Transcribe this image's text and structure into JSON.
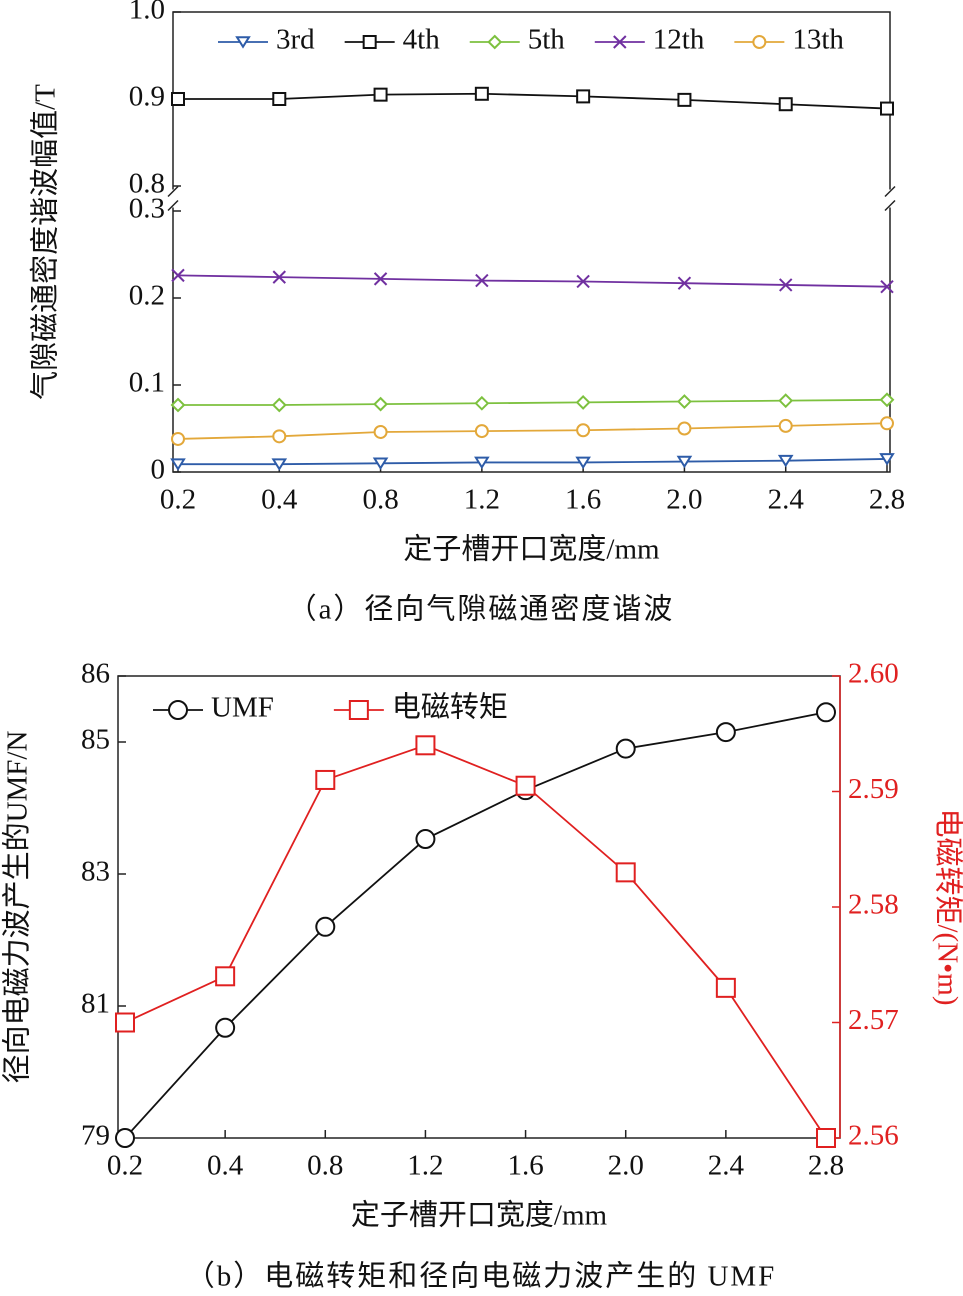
{
  "chart_data": [
    {
      "type": "line",
      "caption": "（a）径向气隙磁通密度谐波",
      "xlabel": "定子槽开口宽度/mm",
      "ylabel": "气隙磁通密度谐波幅值/T",
      "categories": [
        "0.2",
        "0.4",
        "0.8",
        "1.2",
        "1.6",
        "2.0",
        "2.4",
        "2.8"
      ],
      "ylim": [
        0,
        1.0
      ],
      "ybreak": [
        0.3,
        0.8
      ],
      "yticks": [
        0,
        0.1,
        0.2,
        0.3,
        0.8,
        0.9,
        {
          "value": 1.0,
          "label": "1.0"
        }
      ],
      "legend": "top",
      "series": [
        {
          "name": "3rd",
          "color": "#2e5ca8",
          "marker": "triangle-down",
          "values": [
            0.009,
            0.009,
            0.01,
            0.011,
            0.011,
            0.012,
            0.013,
            0.015
          ]
        },
        {
          "name": "4th",
          "color": "#111111",
          "marker": "square",
          "values": [
            0.9,
            0.9,
            0.905,
            0.906,
            0.903,
            0.899,
            0.894,
            0.889
          ]
        },
        {
          "name": "5th",
          "color": "#7dc13f",
          "marker": "diamond",
          "values": [
            0.077,
            0.077,
            0.078,
            0.079,
            0.08,
            0.081,
            0.082,
            0.083
          ]
        },
        {
          "name": "12th",
          "color": "#7030a0",
          "marker": "x",
          "values": [
            0.226,
            0.224,
            0.222,
            0.22,
            0.219,
            0.217,
            0.215,
            0.213
          ]
        },
        {
          "name": "13th",
          "color": "#e3a83a",
          "marker": "circle",
          "values": [
            0.038,
            0.041,
            0.046,
            0.047,
            0.048,
            0.05,
            0.053,
            0.056
          ]
        }
      ]
    },
    {
      "type": "line",
      "caption": "（b）电磁转矩和径向电磁力波产生的 UMF",
      "xlabel": "定子槽开口宽度/mm",
      "ylabel": "径向电磁力波产生的UMF/N",
      "y2label": "电磁转矩/(N•m)",
      "categories": [
        "0.2",
        "0.4",
        "0.8",
        "1.2",
        "1.6",
        "2.0",
        "2.4",
        "2.8"
      ],
      "ylim": [
        79,
        86
      ],
      "yticks": [
        79,
        81,
        83,
        85,
        86
      ],
      "y2lim": [
        2.56,
        2.6
      ],
      "y2ticks": [
        2.56,
        2.57,
        2.58,
        2.59,
        {
          "value": 2.6,
          "label": "2.60"
        }
      ],
      "y2color": "#e02020",
      "legend": "top-left",
      "series": [
        {
          "name": "UMF",
          "color": "#111111",
          "marker": "circle",
          "values": [
            79.0,
            80.67,
            82.2,
            83.53,
            84.27,
            84.9,
            85.15,
            85.45
          ]
        },
        {
          "name": "电磁转矩",
          "color": "#e02020",
          "marker": "square",
          "axis": "y2",
          "values": [
            2.57,
            2.574,
            2.591,
            2.594,
            2.5905,
            2.583,
            2.573,
            2.56
          ]
        }
      ]
    }
  ]
}
